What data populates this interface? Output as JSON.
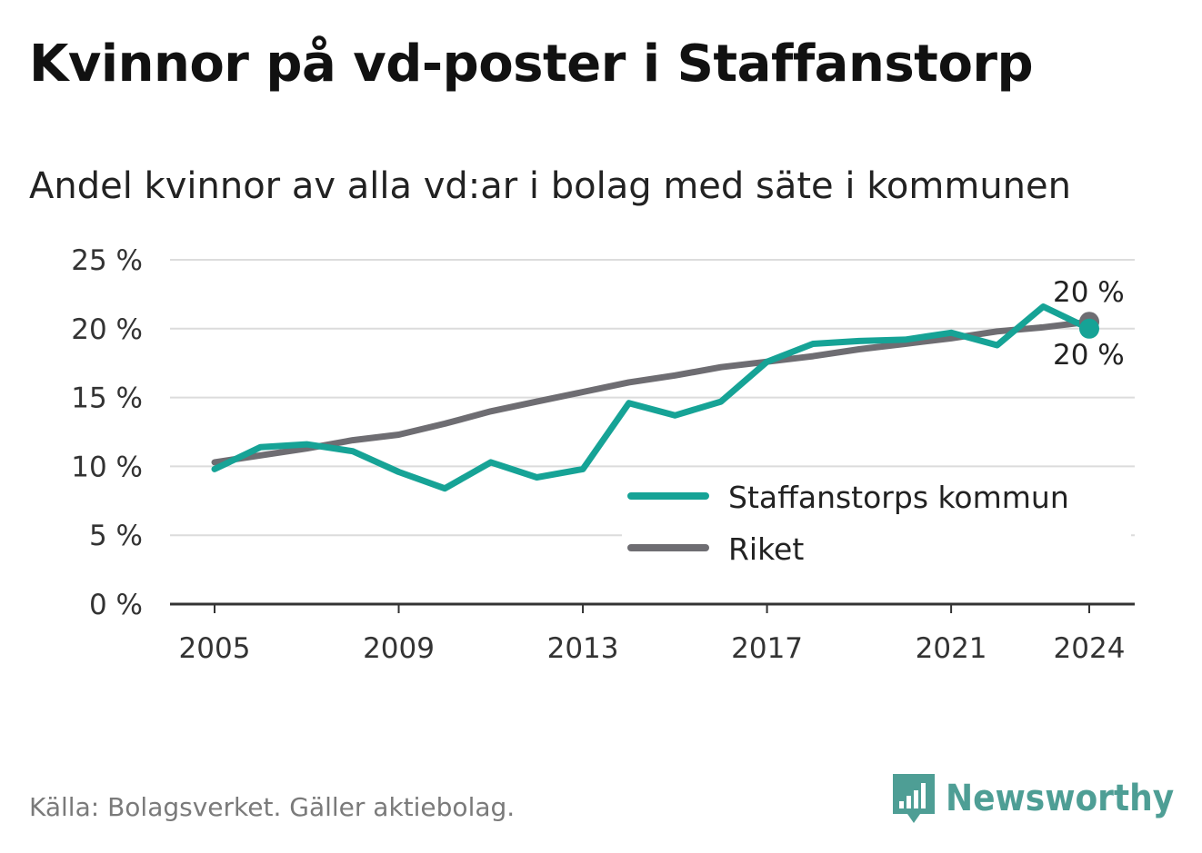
{
  "title": "Kvinnor på vd-poster i Staffanstorp",
  "subtitle": "Andel kvinnor av alla vd:ar i bolag med säte i kommunen",
  "source": "Källa: Bolagsverket. Gäller aktiebolag.",
  "brand": "Newsworthy",
  "colors": {
    "kommun": "#16a396",
    "riket": "#6e6d72",
    "grid": "#dcdcdc",
    "axis": "#333333"
  },
  "chart_data": {
    "type": "line",
    "x": [
      2005,
      2006,
      2007,
      2008,
      2009,
      2010,
      2011,
      2012,
      2013,
      2014,
      2015,
      2016,
      2017,
      2018,
      2019,
      2020,
      2021,
      2022,
      2023,
      2024
    ],
    "series": [
      {
        "name": "Staffanstorps kommun",
        "values": [
          9.8,
          11.4,
          11.6,
          11.1,
          9.6,
          8.4,
          10.3,
          9.2,
          9.8,
          14.6,
          13.7,
          14.7,
          17.6,
          18.9,
          19.1,
          19.2,
          19.7,
          18.8,
          21.6,
          20.0
        ]
      },
      {
        "name": "Riket",
        "values": [
          10.3,
          10.8,
          11.3,
          11.9,
          12.3,
          13.1,
          14.0,
          14.7,
          15.4,
          16.1,
          16.6,
          17.2,
          17.6,
          18.0,
          18.5,
          18.9,
          19.3,
          19.8,
          20.1,
          20.5
        ]
      }
    ],
    "y_ticks": [
      "0 %",
      "5 %",
      "10 %",
      "15 %",
      "20 %",
      "25 %"
    ],
    "y_tick_values": [
      0,
      5,
      10,
      15,
      20,
      25
    ],
    "x_ticks": [
      "2005",
      "2009",
      "2013",
      "2017",
      "2021",
      "2024"
    ],
    "x_tick_values": [
      2005,
      2009,
      2013,
      2017,
      2021,
      2024
    ],
    "ylim": [
      0,
      25
    ],
    "end_labels": {
      "riket": "20 %",
      "kommun": "20 %"
    },
    "legend": [
      "Staffanstorps kommun",
      "Riket"
    ],
    "legend_position": "lower-right",
    "grid": true
  }
}
